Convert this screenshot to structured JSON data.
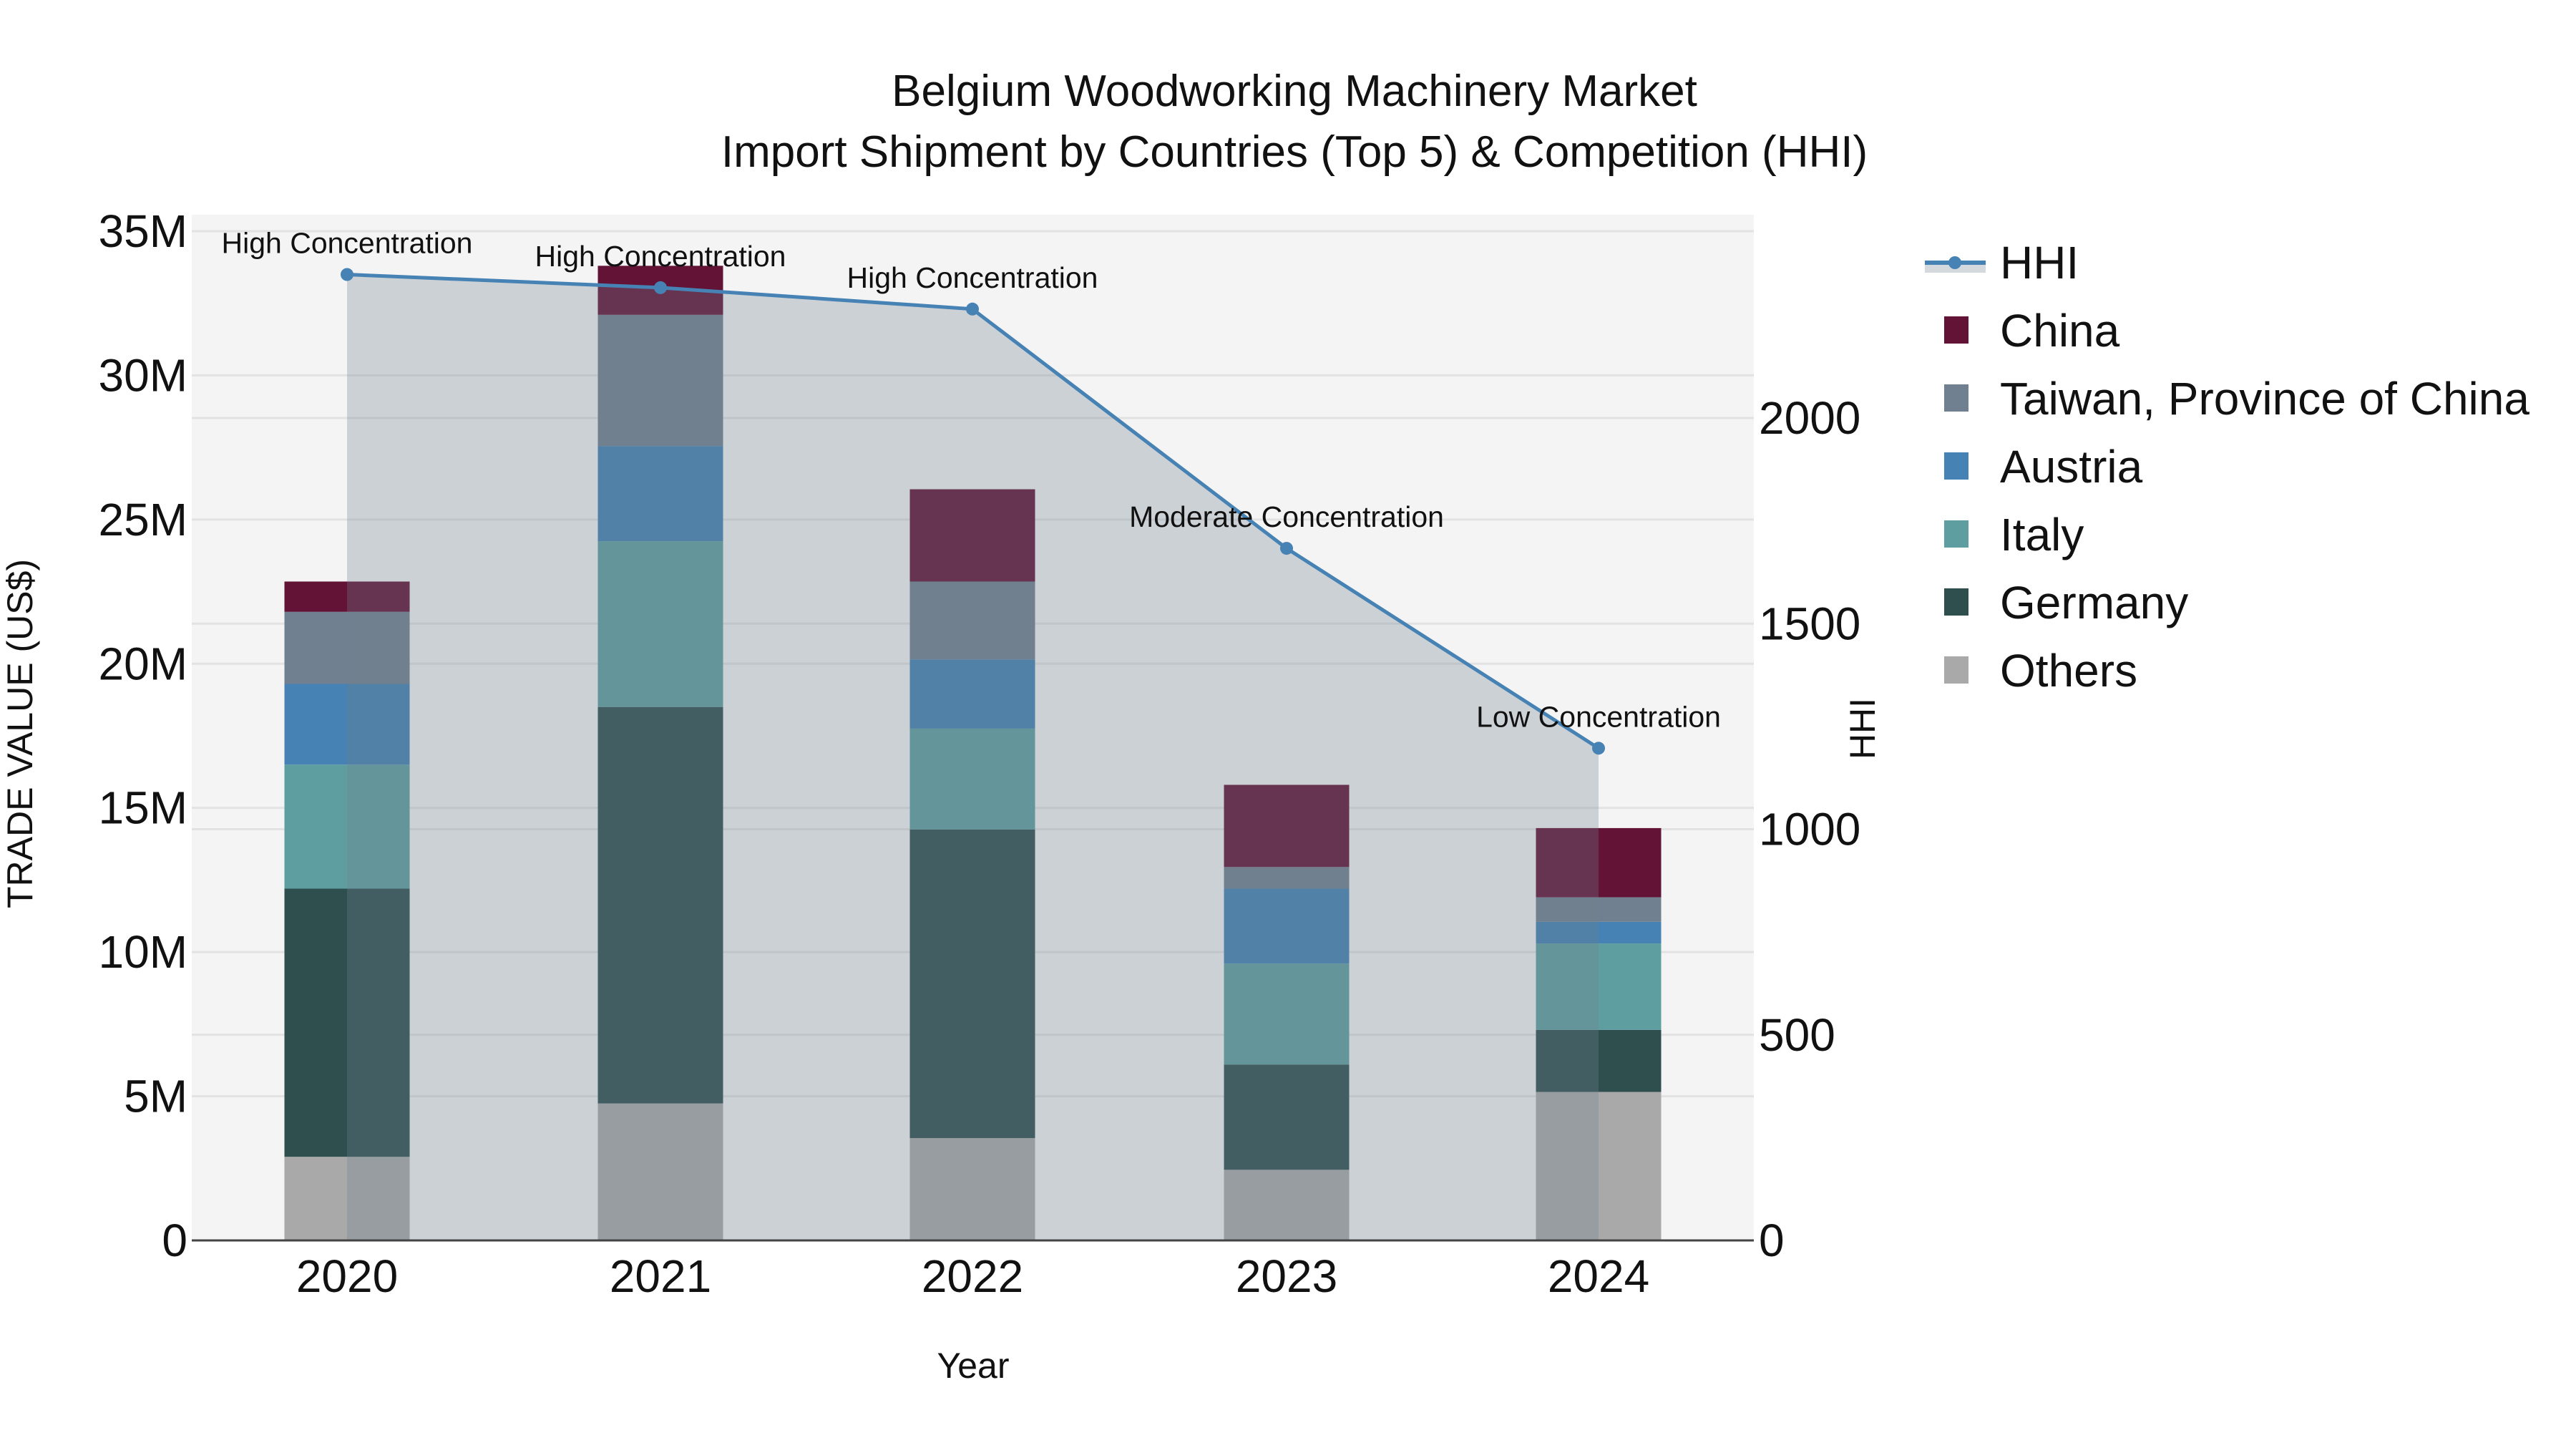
{
  "chart_data": {
    "type": "bar",
    "subtype": "stacked bar + line (secondary axis, area fill)",
    "title": "Belgium Woodworking Machinery Market",
    "subtitle": "Import Shipment by Countries (Top 5) & Competition (HHI)",
    "xlabel": "Year",
    "ylabel": "TRADE VALUE (US$)",
    "y2label": "HHI",
    "categories": [
      "2020",
      "2021",
      "2022",
      "2023",
      "2024"
    ],
    "ylim": [
      0,
      35000000
    ],
    "y_ticks": [
      "0",
      "5M",
      "10M",
      "15M",
      "20M",
      "25M",
      "30M",
      "35M"
    ],
    "y2lim": [
      0,
      2450
    ],
    "y2_ticks": [
      "0",
      "500",
      "1000",
      "1500",
      "2000"
    ],
    "grid": true,
    "legend_position": "right",
    "series": [
      {
        "name": "Others",
        "color": "#A9A9A9",
        "values": [
          2900000,
          4750000,
          3550000,
          2450000,
          5150000
        ]
      },
      {
        "name": "Germany",
        "color": "#2F4F4F",
        "values": [
          9300000,
          13750000,
          10700000,
          3650000,
          2150000
        ]
      },
      {
        "name": "Italy",
        "color": "#5F9EA0",
        "values": [
          4300000,
          5750000,
          3500000,
          3500000,
          3000000
        ]
      },
      {
        "name": "Austria",
        "color": "#4682B4",
        "values": [
          2800000,
          3300000,
          2400000,
          2600000,
          750000
        ]
      },
      {
        "name": "Taiwan, Province of China",
        "color": "#708090",
        "values": [
          2500000,
          4550000,
          2700000,
          750000,
          850000
        ]
      },
      {
        "name": "China",
        "color": "#621336",
        "values": [
          1050000,
          1700000,
          3200000,
          2850000,
          2400000
        ]
      }
    ],
    "line_series": {
      "name": "HHI",
      "color": "#4682B4",
      "axis": "y2",
      "values": [
        2349,
        2317,
        2265,
        1683,
        1197
      ],
      "annotations": [
        "High Concentration",
        "High Concentration",
        "High Concentration",
        "Moderate Concentration",
        "Low Concentration"
      ]
    }
  },
  "legend": {
    "items": [
      {
        "label": "HHI",
        "type": "line",
        "color": "#4682B4"
      },
      {
        "label": "China",
        "type": "square",
        "color": "#621336"
      },
      {
        "label": "Taiwan, Province of China",
        "type": "square",
        "color": "#708090"
      },
      {
        "label": "Austria",
        "type": "square",
        "color": "#4682B4"
      },
      {
        "label": "Italy",
        "type": "square",
        "color": "#5F9EA0"
      },
      {
        "label": "Germany",
        "type": "square",
        "color": "#2F4F4F"
      },
      {
        "label": "Others",
        "type": "square",
        "color": "#A9A9A9"
      }
    ]
  },
  "style": {
    "plot_bg": "#F4F4F4",
    "grid_color": "#E2E2E2",
    "hhi_fill": "rgba(112,128,144,0.3)"
  }
}
